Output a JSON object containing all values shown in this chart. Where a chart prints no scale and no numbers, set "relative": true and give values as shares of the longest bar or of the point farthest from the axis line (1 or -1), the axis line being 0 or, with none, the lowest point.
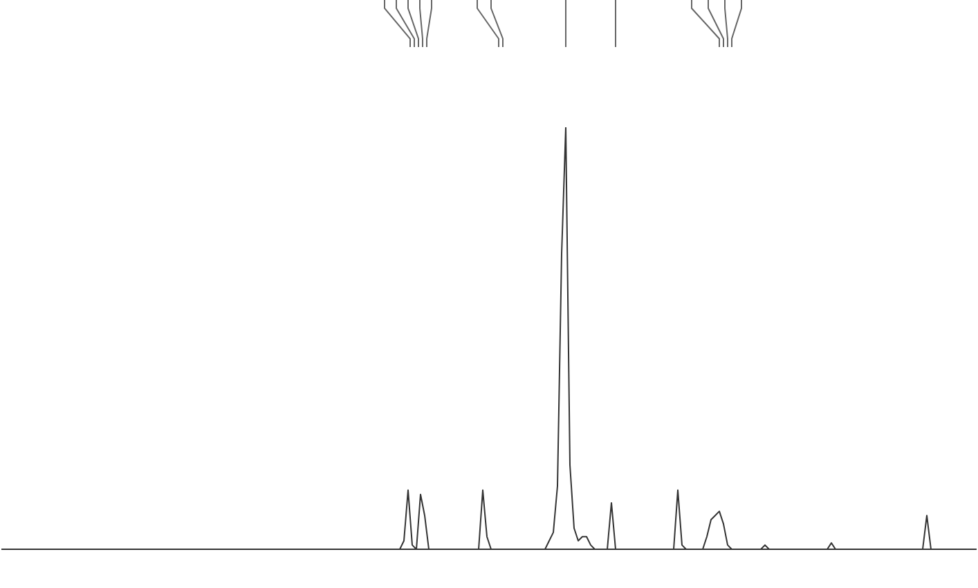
{
  "chart_data": {
    "type": "line",
    "relative": true,
    "grid": false,
    "legend": false,
    "marker": "none",
    "line_style": "solid",
    "categories": [
      null,
      null,
      null,
      null,
      null,
      null,
      null,
      null,
      null,
      null,
      null,
      null,
      null,
      null,
      null,
      null,
      null,
      null,
      null,
      null,
      null,
      null,
      null,
      null,
      null,
      null,
      null,
      null,
      null,
      null,
      null,
      null,
      null,
      null,
      null,
      null,
      null,
      null,
      null,
      null,
      null,
      null,
      null,
      null,
      null,
      null,
      null,
      null,
      null,
      null,
      null,
      null,
      null,
      null,
      null,
      null,
      null,
      null,
      null,
      null,
      null,
      null,
      null,
      null,
      null,
      null,
      null,
      null,
      null,
      null,
      null,
      null,
      null,
      null,
      null,
      null,
      null,
      null,
      null,
      null,
      null,
      null,
      null,
      null,
      null,
      null,
      null,
      null,
      null,
      null,
      null,
      null,
      null,
      null,
      null,
      null,
      null,
      null,
      null,
      null,
      null,
      null,
      null,
      null,
      null,
      null,
      null,
      null,
      null,
      null,
      null,
      null,
      null,
      null,
      null,
      null,
      null,
      null,
      null,
      null,
      null,
      null,
      null,
      null,
      null,
      null,
      null,
      null,
      null,
      null,
      null,
      null,
      null,
      null,
      null,
      null,
      null,
      null,
      null,
      null,
      null,
      null,
      null,
      null,
      null,
      null,
      null,
      null,
      null,
      null,
      null,
      null,
      null,
      null,
      null,
      null,
      null,
      null,
      null,
      null,
      null,
      null,
      null,
      null,
      null,
      null,
      null,
      null,
      null,
      null,
      null,
      null,
      null,
      null,
      null,
      null,
      null,
      null,
      null,
      null,
      null,
      null,
      null,
      null,
      null,
      null,
      null,
      null,
      null,
      null,
      null,
      null,
      null,
      null,
      null,
      null,
      null,
      null,
      null,
      null,
      null,
      null,
      null,
      null,
      null,
      null,
      null,
      null,
      null,
      null,
      null,
      null,
      null,
      null,
      null,
      null,
      null,
      null,
      null,
      null,
      null,
      null,
      null,
      null,
      null,
      null,
      null,
      null,
      null,
      null,
      null,
      null,
      null,
      null,
      null,
      null
    ],
    "series": [
      {
        "color": "#333333",
        "values": [
          0,
          0,
          0,
          0,
          0,
          0,
          0,
          0,
          0,
          0,
          0,
          0,
          0,
          0,
          0,
          0,
          0,
          0,
          0,
          0,
          0,
          0,
          0,
          0,
          0,
          0,
          0,
          0,
          0,
          0,
          0,
          0,
          0,
          0,
          0,
          0,
          0,
          0,
          0,
          0,
          0,
          0,
          0,
          0,
          0,
          0,
          0,
          0,
          0,
          0,
          0,
          0,
          0,
          0,
          0,
          0,
          0,
          0,
          0,
          0,
          0,
          0,
          0,
          0,
          0,
          0,
          0,
          0,
          0,
          0,
          0,
          0,
          0,
          0,
          0,
          0,
          0,
          0,
          0,
          0,
          0,
          0,
          0,
          0,
          0,
          0,
          0,
          0,
          0,
          0,
          0,
          0,
          0,
          0,
          0,
          0,
          0,
          0.02,
          0.14,
          0.01,
          0,
          0.13,
          0.08,
          0,
          0,
          0,
          0,
          0,
          0,
          0,
          0,
          0,
          0,
          0,
          0,
          0,
          0.14,
          0.03,
          0,
          0,
          0,
          0,
          0,
          0,
          0,
          0,
          0,
          0,
          0,
          0,
          0,
          0,
          0.02,
          0.04,
          0.15,
          0.7,
          1,
          0.2,
          0.05,
          0.02,
          0.03,
          0.03,
          0.01,
          0,
          0,
          0,
          0,
          0.11,
          0,
          0,
          0,
          0,
          0,
          0,
          0,
          0,
          0,
          0,
          0,
          0,
          0,
          0,
          0,
          0.14,
          0.01,
          0,
          0,
          0,
          0,
          0,
          0.03,
          0.07,
          0.08,
          0.09,
          0.06,
          0.01,
          0,
          0,
          0,
          0,
          0,
          0,
          0,
          0,
          0.01,
          0,
          0,
          0,
          0,
          0,
          0,
          0,
          0,
          0,
          0,
          0,
          0,
          0,
          0,
          0,
          0.015,
          0,
          0,
          0,
          0,
          0,
          0,
          0,
          0,
          0,
          0,
          0,
          0,
          0,
          0,
          0,
          0,
          0,
          0,
          0,
          0,
          0,
          0,
          0.08,
          0,
          0,
          0,
          0,
          0,
          0,
          0,
          0,
          0,
          0,
          0,
          0
        ]
      }
    ]
  }
}
